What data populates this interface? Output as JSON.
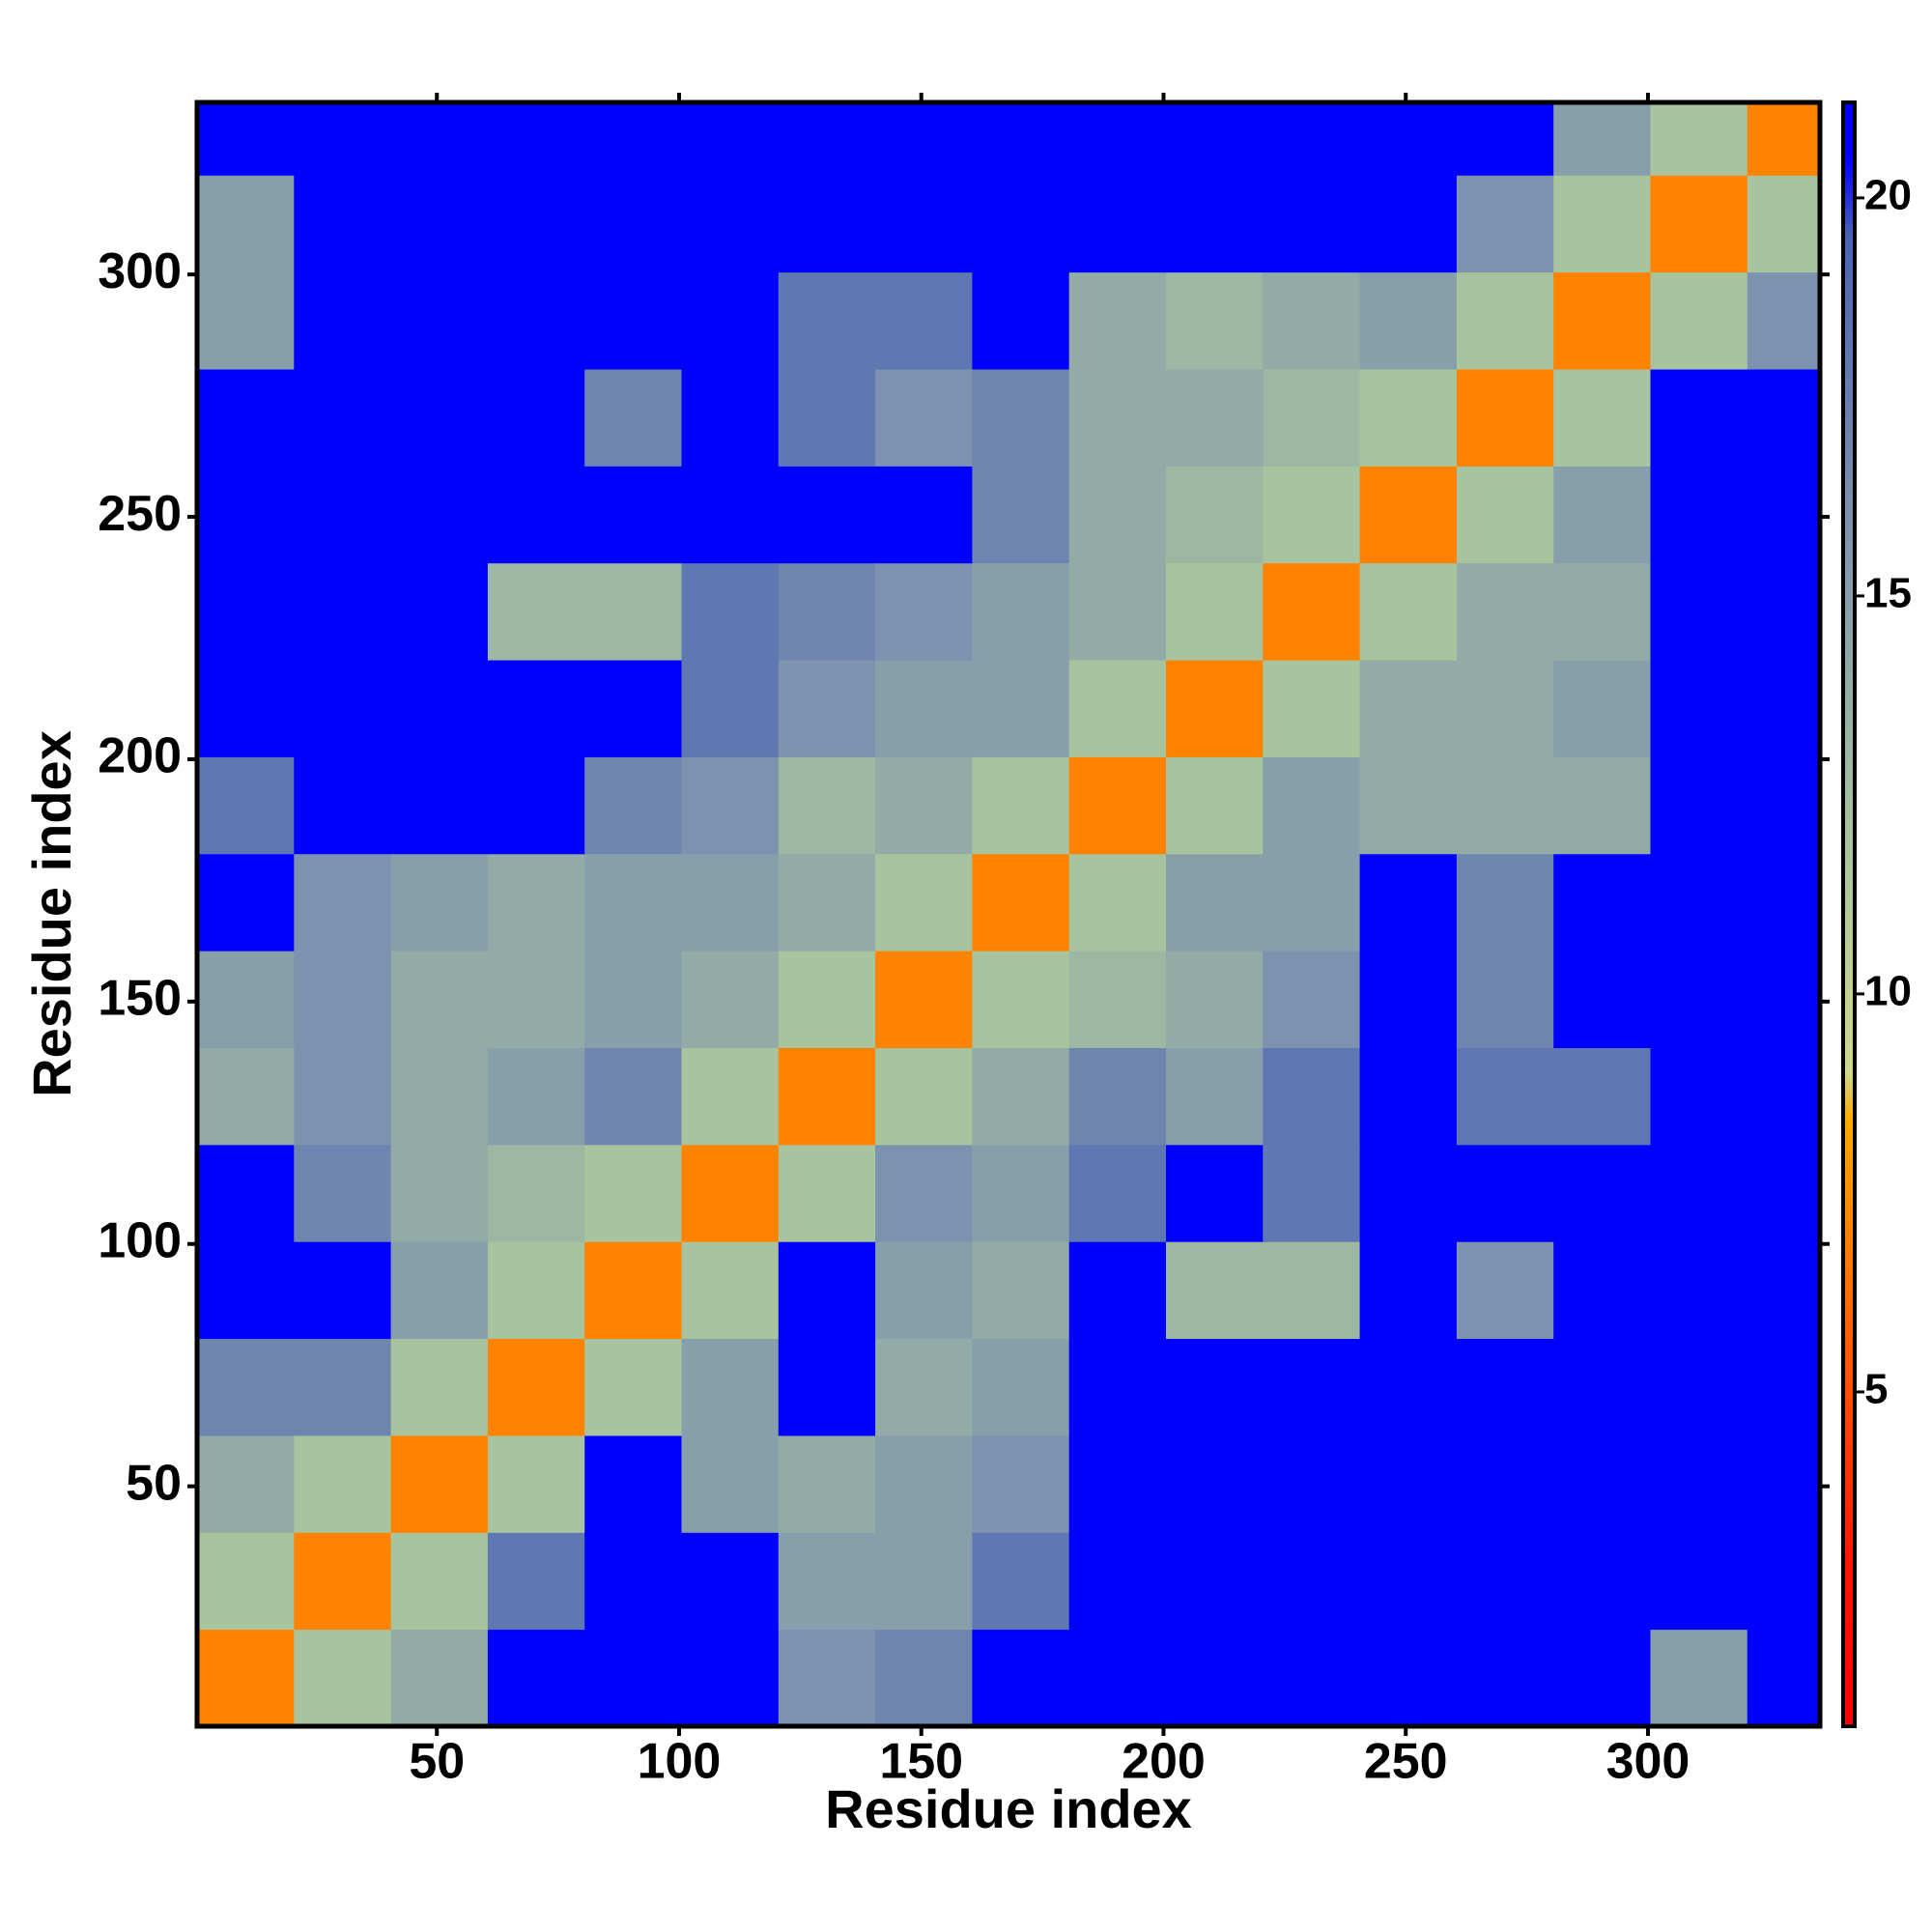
{
  "chart_data": {
    "type": "heatmap",
    "xlabel": "Residue index",
    "ylabel": "Residue index",
    "x_edges": [
      0.5,
      20.5,
      40.5,
      60.5,
      80.5,
      100.5,
      120.5,
      140.5,
      160.5,
      180.5,
      200.5,
      220.5,
      240.5,
      260.5,
      280.5,
      300.5,
      320.5,
      335.5
    ],
    "y_edges": [
      0.5,
      20.5,
      40.5,
      60.5,
      80.5,
      100.5,
      120.5,
      140.5,
      160.5,
      180.5,
      200.5,
      220.5,
      240.5,
      260.5,
      280.5,
      300.5,
      320.5,
      335.5
    ],
    "xlim": [
      0.5,
      335.5
    ],
    "ylim": [
      0.5,
      335.5
    ],
    "xticks": [
      50,
      100,
      150,
      200,
      250,
      300
    ],
    "yticks": [
      50,
      100,
      150,
      200,
      250,
      300
    ],
    "z": [
      [
        7,
        12,
        14,
        21,
        21,
        21,
        16,
        17,
        21,
        21,
        21,
        21,
        21,
        21,
        21,
        15,
        21
      ],
      [
        12,
        7,
        12,
        18,
        21,
        21,
        15,
        15,
        18,
        21,
        21,
        21,
        21,
        21,
        21,
        21,
        21
      ],
      [
        14,
        12,
        7,
        12,
        21,
        15,
        14,
        15,
        16,
        21,
        21,
        21,
        21,
        21,
        21,
        21,
        21
      ],
      [
        17,
        17,
        12,
        7,
        12,
        15,
        21,
        14,
        15,
        21,
        21,
        21,
        21,
        21,
        21,
        21,
        21
      ],
      [
        21,
        21,
        15,
        12,
        7,
        12,
        21,
        15,
        14,
        21,
        13,
        13,
        21,
        16,
        21,
        21,
        21
      ],
      [
        21,
        17,
        14,
        13,
        12,
        7,
        12,
        16,
        15,
        18,
        21,
        18,
        21,
        21,
        21,
        21,
        21
      ],
      [
        14,
        16,
        14,
        15,
        17,
        12,
        7,
        12,
        14,
        17,
        15,
        18,
        21,
        18,
        18,
        21,
        21
      ],
      [
        15,
        16,
        14,
        14,
        15,
        14,
        12,
        7,
        12,
        13,
        14,
        16,
        21,
        17,
        21,
        21,
        21
      ],
      [
        21,
        16,
        15,
        14,
        15,
        15,
        14,
        12,
        7,
        12,
        15,
        15,
        21,
        17,
        21,
        21,
        21
      ],
      [
        18,
        21,
        21,
        21,
        17,
        16,
        13,
        14,
        12,
        7,
        12,
        15,
        14,
        14,
        14,
        21,
        21
      ],
      [
        21,
        21,
        21,
        21,
        21,
        18,
        16,
        15,
        15,
        12,
        7,
        12,
        14,
        14,
        15,
        21,
        21
      ],
      [
        21,
        21,
        21,
        13,
        13,
        18,
        17,
        16,
        15,
        14,
        12,
        7,
        12,
        14,
        14,
        21,
        21
      ],
      [
        21,
        21,
        21,
        21,
        21,
        21,
        21,
        21,
        17,
        14,
        13,
        12,
        7,
        12,
        15,
        21,
        21
      ],
      [
        21,
        21,
        21,
        21,
        17,
        21,
        18,
        16,
        17,
        14,
        14,
        13,
        12,
        7,
        12,
        21,
        21
      ],
      [
        15,
        21,
        21,
        21,
        21,
        21,
        18,
        18,
        21,
        14,
        13,
        14,
        15,
        12,
        7,
        12,
        16
      ],
      [
        15,
        21,
        21,
        21,
        21,
        21,
        21,
        21,
        21,
        21,
        21,
        21,
        21,
        16,
        12,
        7,
        12
      ],
      [
        21,
        21,
        21,
        21,
        21,
        21,
        21,
        21,
        21,
        21,
        21,
        21,
        21,
        21,
        15,
        12,
        7
      ]
    ],
    "clim": [
      0.8,
      21.2
    ],
    "cticks": [
      5,
      10,
      15,
      20
    ],
    "colorscale": [
      {
        "value": 0.8,
        "color": "#ff0000"
      },
      {
        "value": 3,
        "color": "#ff1a00"
      },
      {
        "value": 5.5,
        "color": "#ff5a00"
      },
      {
        "value": 8.4,
        "color": "#ffa800"
      },
      {
        "value": 9,
        "color": "#cfd88e"
      },
      {
        "value": 12,
        "color": "#a8c49e"
      },
      {
        "value": 16,
        "color": "#7c92ae"
      },
      {
        "value": 19.5,
        "color": "#4a64b4"
      },
      {
        "value": 20.5,
        "color": "#0000ff"
      },
      {
        "value": 21.2,
        "color": "#0000ff"
      }
    ]
  }
}
